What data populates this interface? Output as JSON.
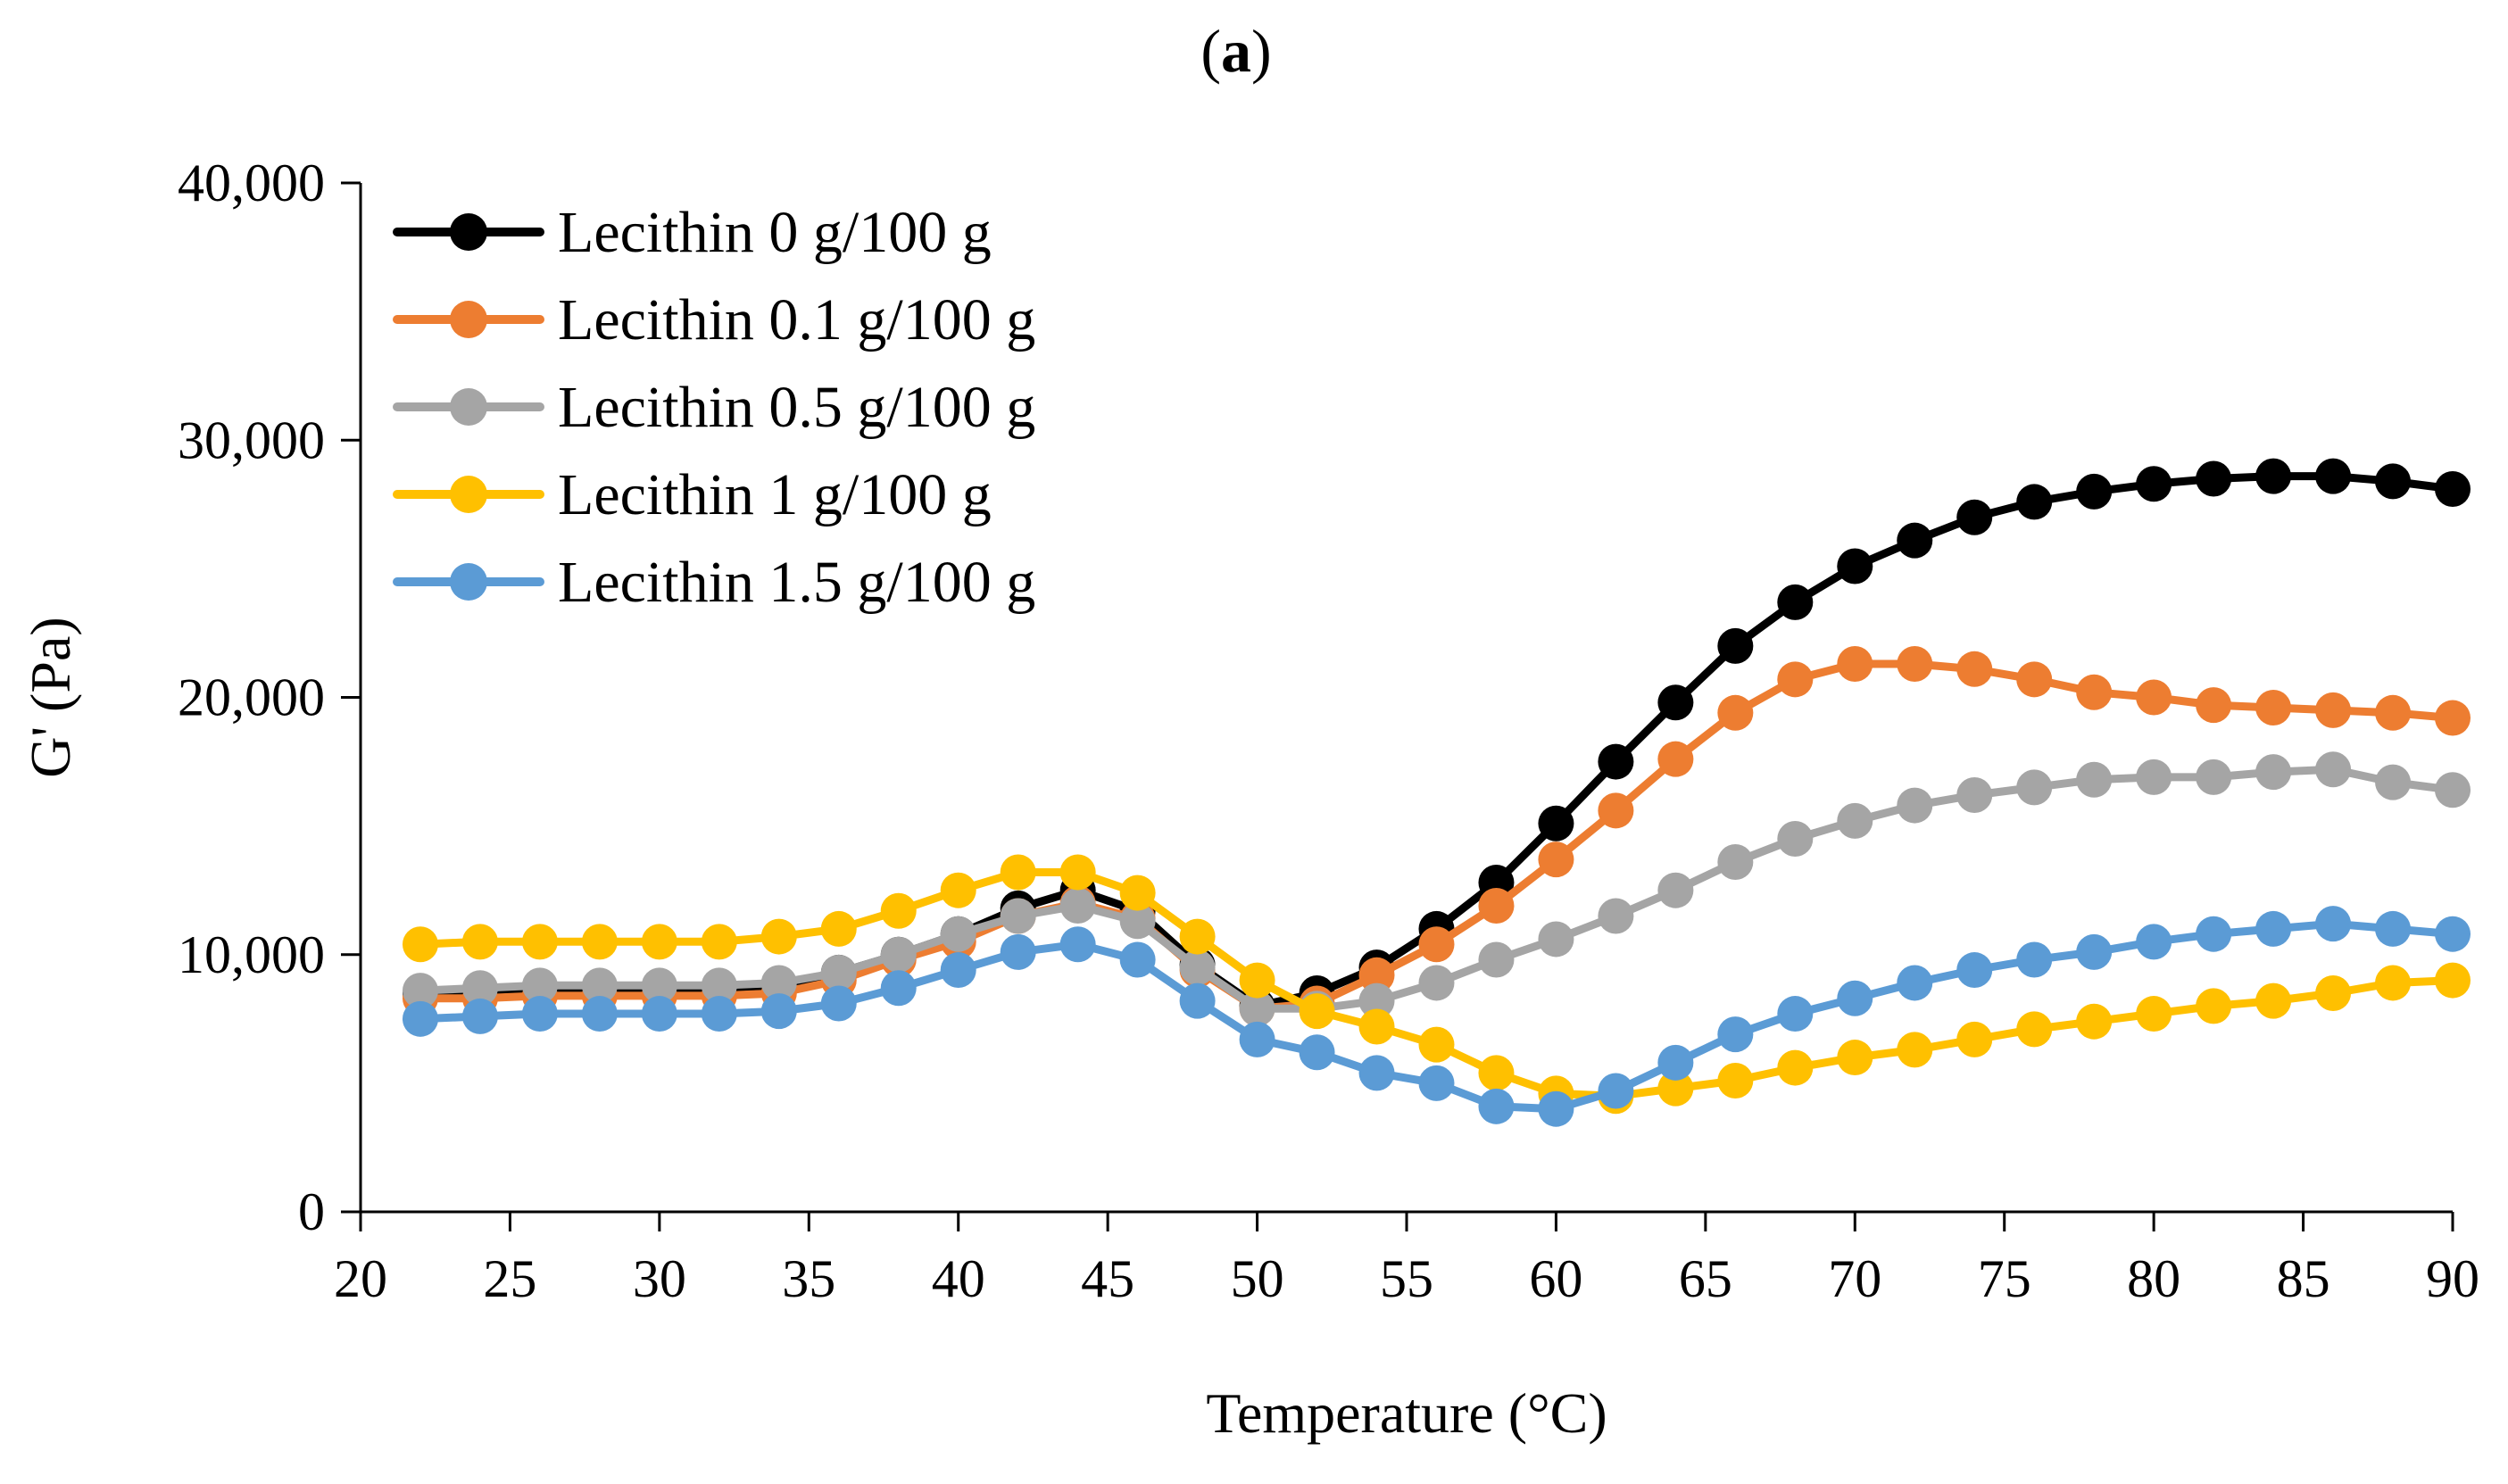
{
  "chart_data": {
    "type": "line",
    "panel_label": "(a)",
    "panel_letter": "a",
    "xlabel": "Temperature (°C)",
    "ylabel": "G' (Pa)",
    "xlim": [
      20,
      90
    ],
    "ylim": [
      0,
      40000
    ],
    "x_ticks": [
      20,
      25,
      30,
      35,
      40,
      45,
      50,
      55,
      60,
      65,
      70,
      75,
      80,
      85,
      90
    ],
    "y_ticks": [
      0,
      10000,
      20000,
      30000,
      40000
    ],
    "y_tick_labels": [
      "0",
      "10,000",
      "20,000",
      "30,000",
      "40,000"
    ],
    "grid": false,
    "legend_position": "top-left",
    "x": [
      22,
      24,
      26,
      28,
      30,
      32,
      34,
      36,
      38,
      40,
      42,
      44,
      46,
      48,
      50,
      52,
      54,
      56,
      58,
      60,
      62,
      64,
      66,
      68,
      70,
      72,
      74,
      76,
      78,
      80,
      82,
      84,
      86,
      88,
      90
    ],
    "series": [
      {
        "name": "Lecithin 0 g/100 g",
        "color": "#000000",
        "values": [
          8500,
          8600,
          8700,
          8700,
          8700,
          8700,
          8800,
          9300,
          10000,
          10800,
          11800,
          12500,
          11700,
          9600,
          8000,
          8500,
          9500,
          11000,
          12800,
          15100,
          17500,
          19800,
          22000,
          23700,
          25100,
          26100,
          27000,
          27600,
          28000,
          28300,
          28500,
          28600,
          28600,
          28400,
          28100
        ]
      },
      {
        "name": "Lecithin 0.1 g/100 g",
        "color": "#ED7D31",
        "values": [
          8300,
          8300,
          8400,
          8400,
          8400,
          8400,
          8500,
          9000,
          9800,
          10500,
          11500,
          12000,
          11400,
          9400,
          7900,
          8100,
          9200,
          10400,
          11900,
          13700,
          15600,
          17600,
          19400,
          20700,
          21300,
          21300,
          21100,
          20700,
          20200,
          20000,
          19700,
          19600,
          19500,
          19400,
          19200
        ]
      },
      {
        "name": "Lecithin 0.5 g/100 g",
        "color": "#A5A5A5",
        "values": [
          8600,
          8700,
          8800,
          8800,
          8800,
          8800,
          8900,
          9300,
          10000,
          10800,
          11500,
          11900,
          11300,
          9500,
          7900,
          7900,
          8200,
          8900,
          9800,
          10600,
          11500,
          12500,
          13600,
          14500,
          15200,
          15800,
          16200,
          16500,
          16800,
          16900,
          16900,
          17100,
          17200,
          16700,
          16400
        ]
      },
      {
        "name": "Lecithin 1 g/100 g",
        "color": "#FFC000",
        "values": [
          10400,
          10500,
          10500,
          10500,
          10500,
          10500,
          10700,
          11000,
          11700,
          12500,
          13200,
          13200,
          12400,
          10700,
          9000,
          7800,
          7200,
          6500,
          5400,
          4600,
          4500,
          4800,
          5100,
          5600,
          6000,
          6300,
          6700,
          7100,
          7400,
          7700,
          8000,
          8200,
          8500,
          8900,
          9000
        ]
      },
      {
        "name": "Lecithin 1.5 g/100 g",
        "color": "#5B9BD5",
        "values": [
          7500,
          7600,
          7700,
          7700,
          7700,
          7700,
          7800,
          8100,
          8700,
          9400,
          10100,
          10400,
          9800,
          8200,
          6700,
          6200,
          5400,
          5000,
          4100,
          4000,
          4700,
          5800,
          6900,
          7700,
          8300,
          8900,
          9400,
          9800,
          10100,
          10500,
          10800,
          11000,
          11200,
          11000,
          10800
        ]
      }
    ]
  }
}
